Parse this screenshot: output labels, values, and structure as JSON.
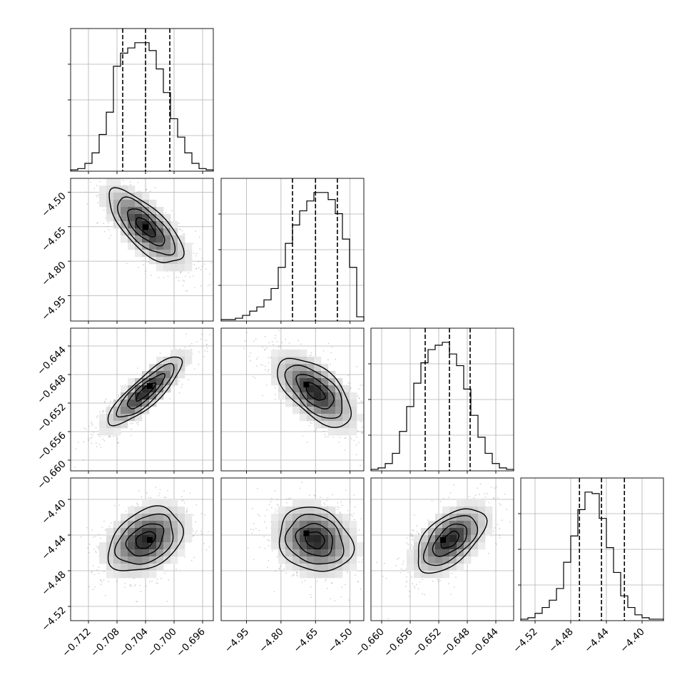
{
  "chart_data": {
    "type": "corner",
    "grid": true,
    "parameters": [
      {
        "index": 0,
        "range": [
          -0.7145,
          -0.6945
        ],
        "ticks": [
          -0.712,
          -0.708,
          -0.704,
          -0.7,
          -0.696
        ],
        "tick_labels": [
          "−0.712",
          "−0.708",
          "−0.704",
          "−0.700",
          "−0.696"
        ],
        "quantiles": [
          -0.7072,
          -0.704,
          -0.7006
        ],
        "hist_counts": [
          1,
          2,
          6,
          14,
          28,
          45,
          80,
          90,
          94,
          98,
          98,
          92,
          78,
          60,
          40,
          26,
          14,
          6,
          2,
          1
        ]
      },
      {
        "index": 1,
        "range": [
          -5.06,
          -4.44
        ],
        "ticks": [
          -4.95,
          -4.8,
          -4.65,
          -4.5
        ],
        "tick_labels": [
          "−4.95",
          "−4.80",
          "−4.65",
          "−4.50"
        ],
        "quantiles": [
          -4.75,
          -4.65,
          -4.555
        ],
        "hist_counts": [
          1,
          1,
          2,
          4,
          7,
          10,
          15,
          23,
          38,
          55,
          68,
          78,
          85,
          91,
          91,
          86,
          76,
          58,
          38,
          3
        ]
      },
      {
        "index": 2,
        "range": [
          -0.6615,
          -0.6415
        ],
        "ticks": [
          -0.66,
          -0.656,
          -0.652,
          -0.648,
          -0.644
        ],
        "tick_labels": [
          "−0.660",
          "−0.656",
          "−0.652",
          "−0.648",
          "−0.644"
        ],
        "quantiles": [
          -0.6539,
          -0.6505,
          -0.6476
        ],
        "hist_counts": [
          1,
          2,
          5,
          12,
          27,
          44,
          60,
          74,
          83,
          86,
          88,
          80,
          72,
          56,
          38,
          23,
          12,
          5,
          2,
          1
        ]
      },
      {
        "index": 3,
        "range": [
          -4.536,
          -4.376
        ],
        "ticks": [
          -4.52,
          -4.48,
          -4.44,
          -4.4
        ],
        "tick_labels": [
          "−4.52",
          "−4.48",
          "−4.44",
          "−4.40"
        ],
        "quantiles": [
          -4.4702,
          -4.4455,
          -4.4198
        ],
        "hist_counts": [
          1,
          2,
          5,
          9,
          14,
          22,
          40,
          58,
          76,
          88,
          87,
          70,
          50,
          33,
          17,
          9,
          4,
          2,
          1,
          1
        ]
      }
    ],
    "panels": [
      {
        "x_param": 0,
        "y_param": 1,
        "mean": [
          -0.704,
          -4.652
        ],
        "sd": [
          0.0026,
          0.08
        ],
        "corr": -0.72,
        "peak": [
          -0.704,
          -4.652
        ]
      },
      {
        "x_param": 0,
        "y_param": 2,
        "mean": [
          -0.704,
          -0.6504
        ],
        "sd": [
          0.0026,
          0.0024
        ],
        "corr": 0.85,
        "peak": [
          -0.7034,
          -0.6496
        ]
      },
      {
        "x_param": 1,
        "y_param": 2,
        "mean": [
          -4.652,
          -0.6504
        ],
        "sd": [
          0.08,
          0.0024
        ],
        "corr": -0.6,
        "peak": [
          -4.69,
          -0.6494
        ]
      },
      {
        "x_param": 0,
        "y_param": 3,
        "mean": [
          -0.704,
          -4.4455
        ],
        "sd": [
          0.0026,
          0.018
        ],
        "corr": 0.35,
        "peak": [
          -0.7034,
          -4.4455
        ]
      },
      {
        "x_param": 1,
        "y_param": 3,
        "mean": [
          -4.652,
          -4.4455
        ],
        "sd": [
          0.08,
          0.018
        ],
        "corr": -0.18,
        "peak": [
          -4.69,
          -4.438
        ]
      },
      {
        "x_param": 2,
        "y_param": 3,
        "mean": [
          -0.6504,
          -4.4455
        ],
        "sd": [
          0.0024,
          0.018
        ],
        "corr": 0.55,
        "peak": [
          -0.6514,
          -4.4455
        ]
      }
    ]
  }
}
